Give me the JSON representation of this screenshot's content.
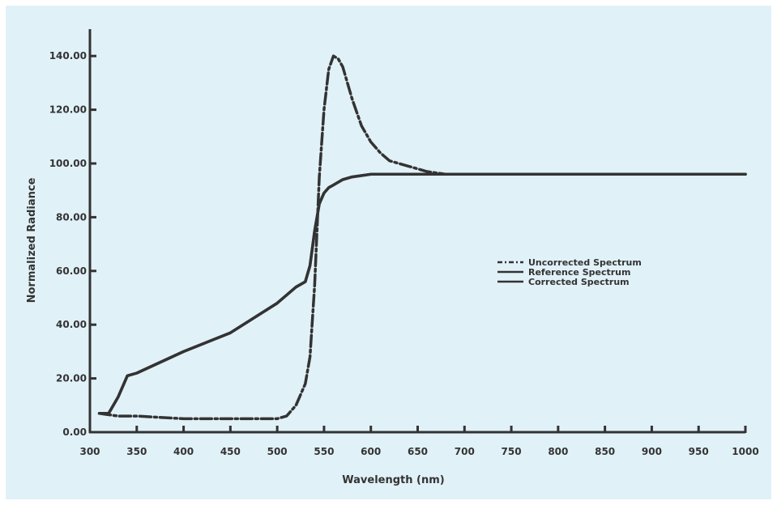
{
  "colors": {
    "background": "#e1f1f8",
    "ink": "#333333"
  },
  "chart_data": {
    "type": "line",
    "title": "",
    "xlabel": "Wavelength (nm)",
    "ylabel": "Normalized Radiance",
    "xlim": [
      300,
      1000
    ],
    "ylim": [
      0,
      150
    ],
    "x_ticks": [
      300,
      350,
      400,
      450,
      500,
      550,
      600,
      650,
      700,
      750,
      800,
      850,
      900,
      950,
      1000
    ],
    "x_tick_labels": [
      "300",
      "350",
      "400",
      "450",
      "500",
      "550",
      "600",
      "650",
      "700",
      "750",
      "800",
      "850",
      "900",
      "950",
      "1000"
    ],
    "y_ticks": [
      0,
      20,
      40,
      60,
      80,
      100,
      120,
      140
    ],
    "y_tick_labels": [
      "0.00",
      "20.00",
      "40.00",
      "60.00",
      "80.00",
      "100.00",
      "120.00",
      "140.00"
    ],
    "grid": false,
    "legend_position": "right-middle",
    "series": [
      {
        "name": "Uncorrected Spectrum",
        "style": "dash-dot",
        "x": [
          310,
          330,
          350,
          400,
          450,
          500,
          510,
          520,
          530,
          535,
          540,
          545,
          550,
          555,
          560,
          565,
          570,
          575,
          580,
          590,
          600,
          610,
          620,
          640,
          660,
          680,
          700,
          750,
          800,
          850,
          900,
          950,
          1000
        ],
        "y": [
          7,
          6,
          6,
          5,
          5,
          5,
          6,
          10,
          18,
          28,
          55,
          95,
          120,
          135,
          140,
          139,
          136,
          130,
          124,
          114,
          108,
          104,
          101,
          99,
          97,
          96,
          96,
          96,
          96,
          96,
          96,
          96,
          96
        ]
      },
      {
        "name": "Reference Spectrum",
        "style": "solid",
        "x": [
          310,
          320,
          330,
          340,
          350,
          400,
          450,
          500,
          520,
          530,
          535,
          540,
          545,
          550,
          555,
          560,
          570,
          580,
          600,
          650,
          700,
          750,
          800,
          850,
          900,
          950,
          1000
        ],
        "y": [
          7,
          7,
          13,
          21,
          22,
          30,
          37,
          48,
          54,
          56,
          62,
          75,
          85,
          89,
          91,
          92,
          94,
          95,
          96,
          96,
          96,
          96,
          96,
          96,
          96,
          96,
          96
        ]
      },
      {
        "name": "Corrected Spectrum",
        "style": "solid",
        "x": [
          310,
          320,
          330,
          340,
          350,
          400,
          450,
          500,
          520,
          530,
          535,
          540,
          545,
          550,
          555,
          560,
          570,
          580,
          600,
          650,
          700,
          750,
          800,
          850,
          900,
          950,
          1000
        ],
        "y": [
          7,
          7,
          13,
          21,
          22,
          30,
          37,
          48,
          54,
          56,
          62,
          75,
          85,
          89,
          91,
          92,
          94,
          95,
          96,
          96,
          96,
          96,
          96,
          96,
          96,
          96,
          96
        ]
      }
    ]
  }
}
